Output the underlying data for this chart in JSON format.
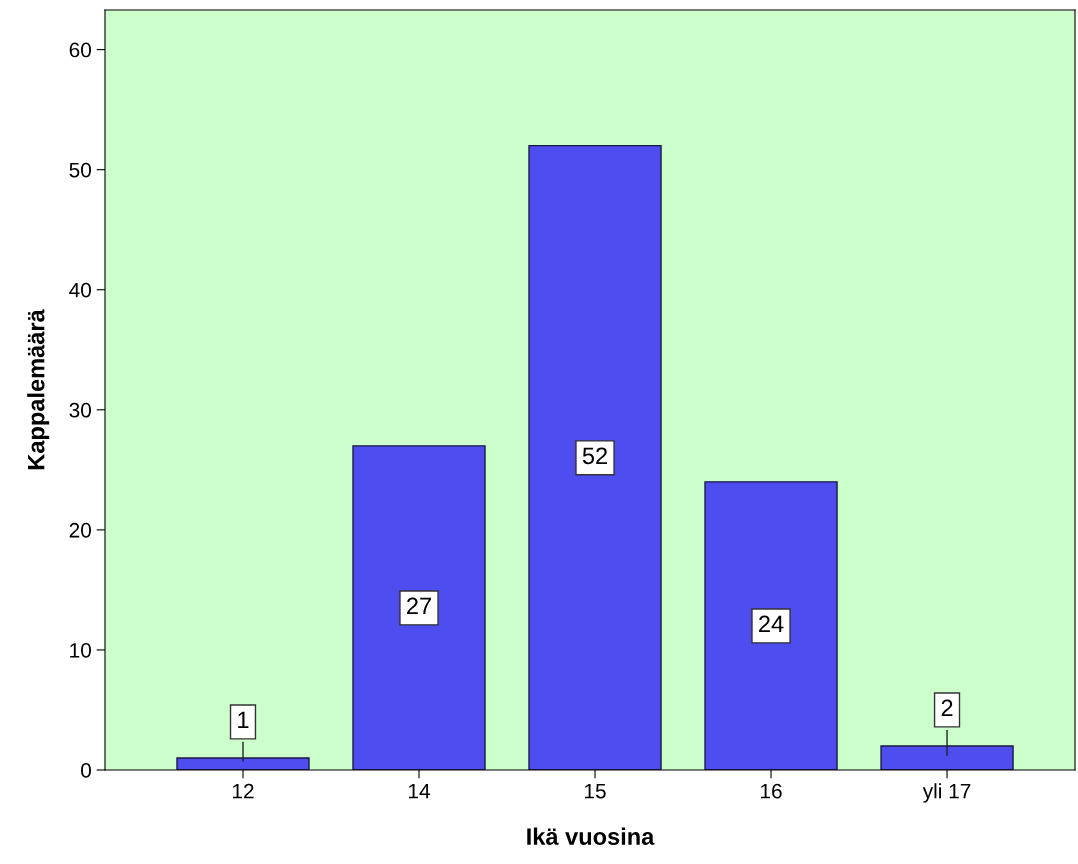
{
  "chart_data": {
    "type": "bar",
    "xlabel": "Ikä vuosina",
    "ylabel": "Kappalemäärä",
    "categories": [
      "12",
      "14",
      "15",
      "16",
      "yli 17"
    ],
    "values": [
      1,
      27,
      52,
      24,
      2
    ],
    "color": "#4d4df0",
    "ylim": [
      0,
      63.3
    ],
    "yticks": [
      0,
      10,
      20,
      30,
      40,
      50,
      60
    ],
    "data_labels": true,
    "grid": false,
    "legend": false
  }
}
